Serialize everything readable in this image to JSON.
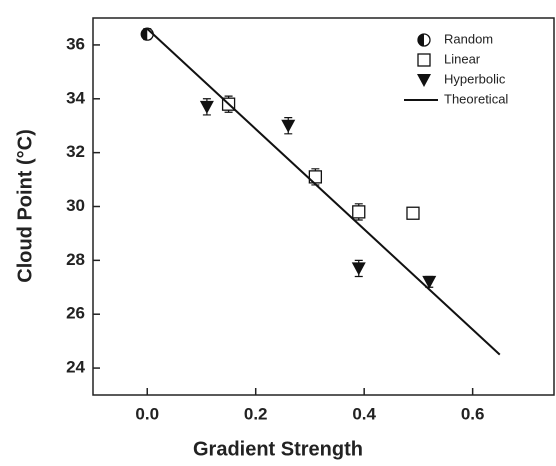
{
  "chart_data": {
    "type": "scatter",
    "xlabel": "Gradient Strength",
    "ylabel": "Cloud Point (°C)",
    "xlim": [
      -0.1,
      0.75
    ],
    "ylim": [
      23,
      37
    ],
    "xticks": [
      {
        "value": 0,
        "label": "0.0"
      },
      0.2,
      0.4,
      0.6
    ],
    "yticks": [
      24,
      26,
      28,
      30,
      32,
      34,
      36
    ],
    "legend": "upper right",
    "series": [
      {
        "name": "Random",
        "type": "scatter",
        "marker": "half-circle",
        "color": "#111111",
        "x": [
          0
        ],
        "values": [
          36.4
        ],
        "errors": [
          0.2
        ]
      },
      {
        "name": "Linear",
        "type": "scatter",
        "marker": "square",
        "color": "#111111",
        "x": [
          0.15,
          0.31,
          0.39,
          0.49
        ],
        "values": [
          33.8,
          31.1,
          29.8,
          29.75
        ],
        "errors": [
          0.3,
          0.3,
          0.3,
          0.2
        ]
      },
      {
        "name": "Hyperbolic",
        "type": "scatter",
        "marker": "triangle-down",
        "color": "#111111",
        "x": [
          0.11,
          0.26,
          0.39,
          0.52
        ],
        "values": [
          33.7,
          33.0,
          27.7,
          27.2
        ],
        "errors": [
          0.3,
          0.3,
          0.3,
          0.2
        ]
      },
      {
        "name": "Theoretical",
        "type": "line",
        "color": "#111111",
        "x": [
          0,
          0.65
        ],
        "values": [
          36.6,
          24.5
        ]
      }
    ]
  }
}
